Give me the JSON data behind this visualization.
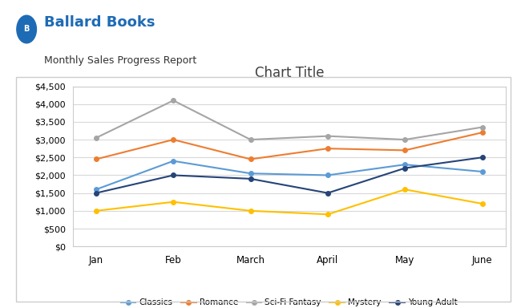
{
  "title": "Chart Title",
  "header_text": "Ballard Books",
  "subheader_text": "Monthly Sales Progress Report",
  "months": [
    "Jan",
    "Feb",
    "March",
    "April",
    "May",
    "June"
  ],
  "series": {
    "Classics": [
      1600,
      2400,
      2050,
      2000,
      2300,
      2100
    ],
    "Romance": [
      2450,
      3000,
      2450,
      2750,
      2700,
      3200
    ],
    "Sci-Fi Fantasy": [
      3050,
      4100,
      3000,
      3100,
      3000,
      3350
    ],
    "Mystery": [
      1000,
      1250,
      1000,
      900,
      1600,
      1200
    ],
    "Young Adult": [
      1500,
      2000,
      1900,
      1500,
      2200,
      2500
    ]
  },
  "colors": {
    "Classics": "#5B9BD5",
    "Romance": "#ED7D31",
    "Sci-Fi Fantasy": "#A5A5A5",
    "Mystery": "#FFC000",
    "Young Adult": "#264478"
  },
  "ylim": [
    0,
    4500
  ],
  "yticks": [
    0,
    500,
    1000,
    1500,
    2000,
    2500,
    3000,
    3500,
    4000,
    4500
  ],
  "chart_bg": "#FFFFFF",
  "outer_bg": "#FFFFFF",
  "grid_color": "#D9D9D9",
  "title_color": "#404040",
  "header_color": "#1E6BB5"
}
